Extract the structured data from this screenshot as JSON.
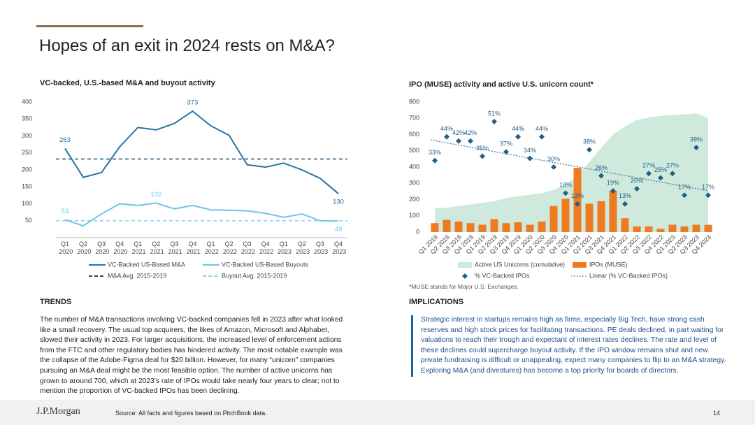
{
  "title": "Hopes of an exit in 2024 rests on M&A?",
  "chart_data": [
    {
      "type": "line",
      "title": "VC-backed, U.S.-based M&A and buyout activity",
      "categories": [
        "Q1 2020",
        "Q2 2020",
        "Q3 2020",
        "Q4 2020",
        "Q1 2021",
        "Q2 2021",
        "Q3 2021",
        "Q4 2021",
        "Q1 2022",
        "Q2 2022",
        "Q3 2022",
        "Q4 2022",
        "Q1 2023",
        "Q2 2023",
        "Q3 2023",
        "Q4 2023"
      ],
      "series": [
        {
          "name": "VC-Backed US-Based M&A",
          "color": "#2274a5",
          "values": [
            263,
            178,
            192,
            268,
            325,
            318,
            337,
            373,
            330,
            302,
            215,
            208,
            220,
            200,
            175,
            130
          ],
          "value_labels": [
            "263",
            null,
            null,
            null,
            null,
            null,
            null,
            "373",
            null,
            null,
            null,
            null,
            null,
            null,
            null,
            "130"
          ]
        },
        {
          "name": "VC-Backed US-Based Buyouts",
          "color": "#6ec4ea",
          "values": [
            53,
            35,
            70,
            100,
            95,
            102,
            85,
            95,
            82,
            81,
            79,
            72,
            60,
            70,
            50,
            49
          ],
          "value_labels": [
            "53",
            null,
            null,
            null,
            null,
            "102",
            null,
            null,
            null,
            null,
            null,
            null,
            null,
            null,
            null,
            "49"
          ]
        }
      ],
      "reference_lines": [
        {
          "name": "M&A Avg. 2015-2019",
          "value": 232,
          "color": "#1d4f73"
        },
        {
          "name": "Buyout Avg. 2015-2019",
          "value": 50,
          "color": "#8fd0ee"
        }
      ],
      "ylim": [
        0,
        400
      ],
      "yticks": [
        50,
        100,
        150,
        200,
        250,
        300,
        350,
        400
      ]
    },
    {
      "type": "combo",
      "title": "IPO (MUSE) activity and active U.S. unicorn count*",
      "note": "*MUSE stands for Major U.S. Exchanges.",
      "categories": [
        "Q1 2018",
        "Q2 2018",
        "Q3 2018",
        "Q4 2018",
        "Q1 2019",
        "Q2 2019",
        "Q3 2019",
        "Q4 2019",
        "Q1 2020",
        "Q2 2020",
        "Q3 2020",
        "Q4 2020",
        "Q1 2021",
        "Q2 2021",
        "Q3 2021",
        "Q4 2021",
        "Q1 2022",
        "Q2 2022",
        "Q3 2022",
        "Q4 2022",
        "Q1 2023",
        "Q2 2023",
        "Q3 2023",
        "Q4 2023"
      ],
      "series": [
        {
          "name": "Active US Unicorns (cumulative)",
          "type": "area",
          "color": "#cfe9dc",
          "values": [
            145,
            150,
            160,
            170,
            180,
            190,
            210,
            220,
            230,
            240,
            260,
            290,
            350,
            430,
            520,
            600,
            650,
            690,
            705,
            715,
            720,
            725,
            730,
            700
          ]
        },
        {
          "name": "IPOs (MUSE)",
          "type": "bar",
          "color": "#ee7b22",
          "values": [
            55,
            75,
            65,
            55,
            45,
            80,
            55,
            60,
            45,
            65,
            160,
            205,
            395,
            175,
            190,
            255,
            85,
            35,
            35,
            20,
            45,
            35,
            45,
            45
          ]
        },
        {
          "name": "% VC-Backed IPOs",
          "type": "scatter",
          "axis": "y2",
          "color": "#1f5f8b",
          "values": [
            33,
            44,
            42,
            42,
            35,
            51,
            37,
            44,
            34,
            44,
            30,
            18,
            13,
            38,
            26,
            19,
            13,
            20,
            27,
            25,
            27,
            17,
            39,
            17
          ],
          "value_labels": [
            "33%",
            "44%",
            "42%",
            "42%",
            "35%",
            "51%",
            "37%",
            "44%",
            "34%",
            "44%",
            "30%",
            "18%",
            "13%",
            "38%",
            "26%",
            "19%",
            "13%",
            "20%",
            "27%",
            "25%",
            "27%",
            "17%",
            "39%",
            "17%"
          ]
        }
      ],
      "trendline": {
        "name": "Linear (% VC-Backed IPOs)",
        "color": "#3a6f9a"
      },
      "ylim": [
        0,
        800
      ],
      "yticks": [
        0,
        100,
        200,
        300,
        400,
        500,
        600,
        700,
        800
      ],
      "y2lim": [
        0,
        60
      ]
    }
  ],
  "trends": {
    "heading": "TRENDS",
    "text": "The number of M&A transactions involving VC-backed companies fell in 2023 after what looked like a small recovery. The usual top acquirers, the likes of Amazon, Microsoft and Alphabet, slowed their activity in 2023. For larger acquisitions, the increased level of enforcement actions from the FTC and other regulatory bodies has hindered activity. The most notable example was the collapse of the Adobe-Figma deal for $20 billion. However, for many “unicorn” companies pursuing an M&A deal might be the most feasible option. The number of active unicorns has grown to around 700, which at 2023’s rate of IPOs would take nearly four years to clear; not to mention the proportion of VC-backed IPOs has been declining."
  },
  "implications": {
    "heading": "IMPLICATIONS",
    "text": "Strategic interest in startups remains high as firms, especially Big Tech, have strong cash reserves and high stock prices for facilitating transactions. PE deals declined, in part waiting for valuations to reach their trough and expectant of interest rates declines. The rate and level of these declines could supercharge buyout activity. If the IPO window remains shut and new private fundraising is difficult or unappealing, expect many companies to flip to an M&A strategy. Exploring M&A (and divestures) has become a top priority for boards of directors."
  },
  "footer": {
    "logo": "J.P.Morgan",
    "source": "Source: All facts and figures based on PitchBook data.",
    "page": "14"
  }
}
